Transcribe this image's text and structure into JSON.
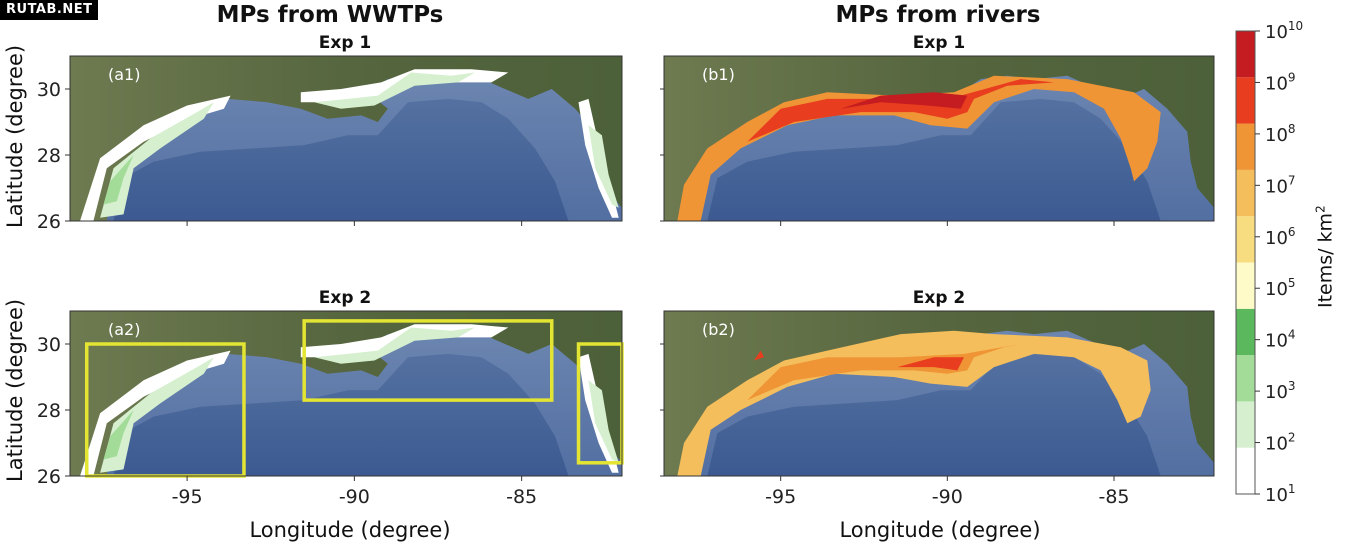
{
  "watermark": "RUTAB.NET",
  "columns": [
    {
      "title": "MPs from WWTPs"
    },
    {
      "title": "MPs from rivers"
    }
  ],
  "panels": [
    {
      "id": "a1",
      "title": "Exp 1",
      "label": "(a1)",
      "source": "WWTPs",
      "palette": "green"
    },
    {
      "id": "b1",
      "title": "Exp 1",
      "label": "(b1)",
      "source": "rivers",
      "palette": "warm"
    },
    {
      "id": "a2",
      "title": "Exp 2",
      "label": "(a2)",
      "source": "WWTPs",
      "palette": "green"
    },
    {
      "id": "b2",
      "title": "Exp 2",
      "label": "(b2)",
      "source": "rivers",
      "palette": "warm"
    }
  ],
  "axes": {
    "xlabel": "Longitude (degree)",
    "ylabel": "Latitude (degree)",
    "xlim": [
      -98.5,
      -82
    ],
    "ylim": [
      26,
      31
    ],
    "xticks": [
      -95,
      -90,
      -85
    ],
    "xtick_labels": [
      "-95",
      "-90",
      "-85"
    ],
    "yticks": [
      26,
      28,
      30
    ],
    "ytick_labels": [
      "26",
      "28",
      "30"
    ]
  },
  "colorbar": {
    "label": "Items/ km",
    "label_superscript": "2",
    "exponents": [
      "1",
      "2",
      "3",
      "4",
      "5",
      "6",
      "7",
      "8",
      "9",
      "10"
    ],
    "base": "10",
    "colors": [
      "#ffffff",
      "#d5efcf",
      "#a3dc98",
      "#5cb85c",
      "#fffbc8",
      "#f8dc80",
      "#f5be5c",
      "#ef9536",
      "#e83d1e",
      "#c41c20"
    ]
  },
  "chart_data": [
    {
      "type": "heatmap",
      "panel": "a1",
      "title": "Exp 1",
      "xlabel": "",
      "ylabel": "Latitude (degree)",
      "xlim": [
        -98.5,
        -82
      ],
      "ylim": [
        26,
        31
      ]
    },
    {
      "type": "heatmap",
      "panel": "b1",
      "title": "Exp 1",
      "xlabel": "",
      "ylabel": "",
      "xlim": [
        -98.5,
        -82
      ],
      "ylim": [
        26,
        31
      ]
    },
    {
      "type": "heatmap",
      "panel": "a2",
      "title": "Exp 2",
      "xlabel": "Longitude (degree)",
      "ylabel": "Latitude (degree)",
      "xlim": [
        -98.5,
        -82
      ],
      "ylim": [
        26,
        31
      ],
      "annotations": [
        {
          "type": "rect",
          "lon": [
            -98,
            -93.3
          ],
          "lat": [
            26,
            30
          ]
        },
        {
          "type": "rect",
          "lon": [
            -91.5,
            -84.1
          ],
          "lat": [
            28.3,
            30.7
          ]
        },
        {
          "type": "rect",
          "lon": [
            -83.3,
            -82
          ],
          "lat": [
            26.4,
            30
          ]
        }
      ]
    },
    {
      "type": "heatmap",
      "panel": "b2",
      "title": "Exp 2",
      "xlabel": "Longitude (degree)",
      "ylabel": "",
      "xlim": [
        -98.5,
        -82
      ],
      "ylim": [
        26,
        31
      ]
    }
  ]
}
